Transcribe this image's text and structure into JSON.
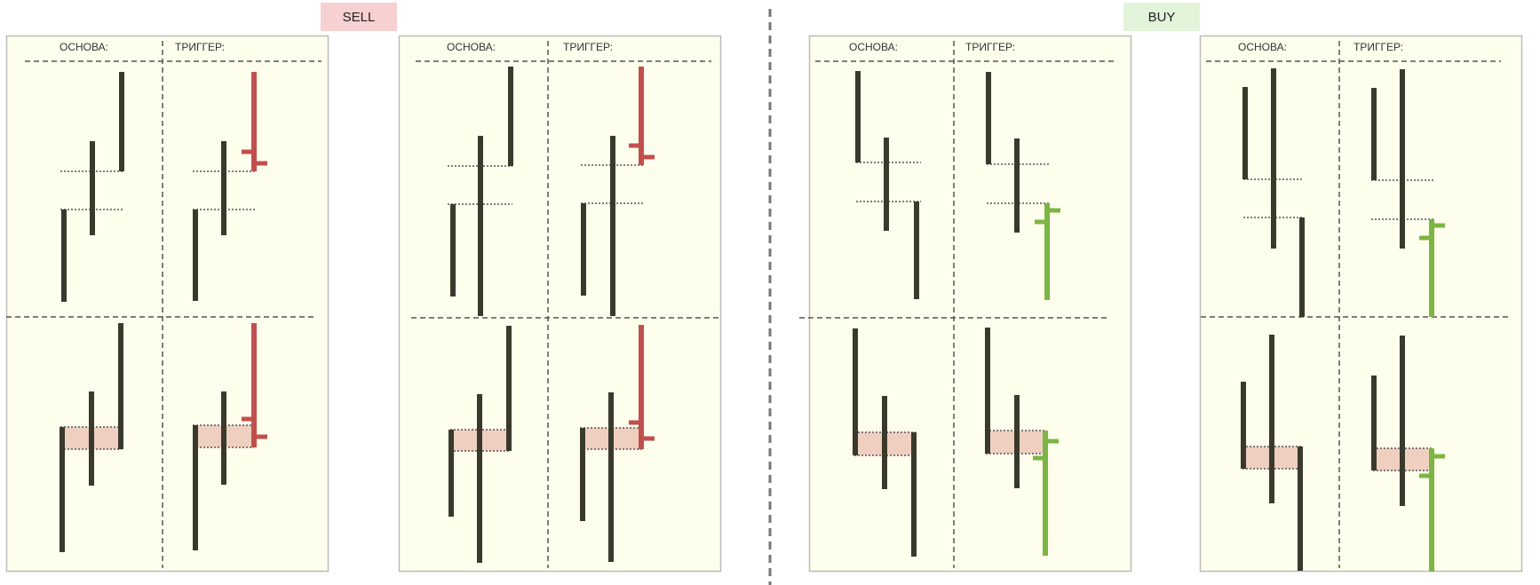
{
  "colors": {
    "panel_bg": "#fefeed",
    "panel_border": "#bbbbbb",
    "bar": "#3a3a2c",
    "sell_trigger": "#c0504d",
    "buy_trigger": "#7db544",
    "zone_fill": "#efcfc0",
    "dashed_line": "#555555",
    "center_divider": "#777777",
    "sell_badge_bg": "#f7d0d2",
    "buy_badge_bg": "#e2f4da"
  },
  "labels": {
    "sell": "SELL",
    "buy": "BUY",
    "base": "ОСНОВА:",
    "trigger": "ТРИГГЕР:"
  },
  "panels": [
    {
      "group": "sell",
      "headers": {
        "base": "ОСНОВА:",
        "trigger": "ТРИГГЕР:"
      }
    },
    {
      "group": "sell",
      "headers": {
        "base": "ОСНОВА:",
        "trigger": "ТРИГГЕР:"
      }
    },
    {
      "group": "buy",
      "headers": {
        "base": "ОСНОВА:",
        "trigger": "ТРИГГЕР:"
      }
    },
    {
      "group": "buy",
      "headers": {
        "base": "ОСНОВА:",
        "trigger": "ТРИГГЕР:"
      }
    }
  ]
}
